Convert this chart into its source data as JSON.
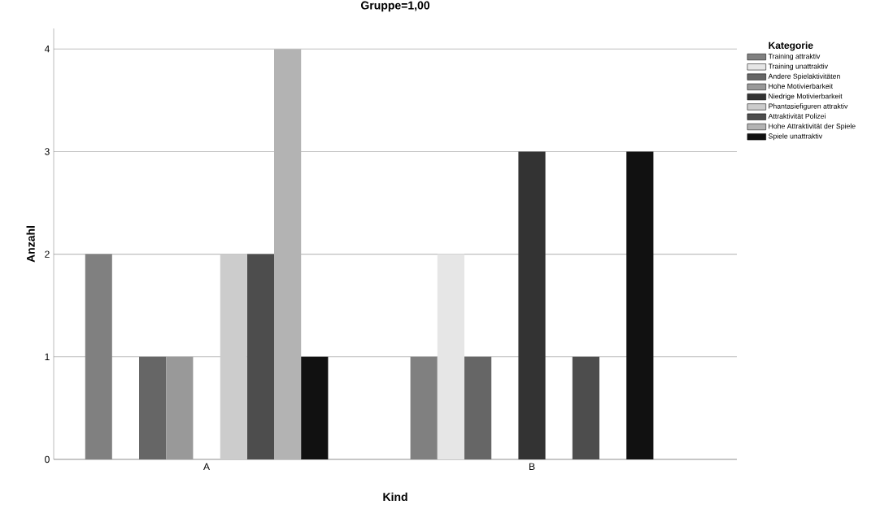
{
  "chart_data": {
    "type": "bar",
    "title": "Gruppe=1,00",
    "xlabel": "Kind",
    "ylabel": "Anzahl",
    "legend_title": "Kategorie",
    "categories": [
      "A",
      "B"
    ],
    "series": [
      {
        "name": "Training attraktiv",
        "color": "#808080",
        "values": [
          2,
          1
        ]
      },
      {
        "name": "Training unattraktiv",
        "color": "#e6e6e6",
        "values": [
          0,
          2
        ]
      },
      {
        "name": "Andere Spielaktivitäten",
        "color": "#666666",
        "values": [
          1,
          1
        ]
      },
      {
        "name": "Hohe Motivierbarkeit",
        "color": "#999999",
        "values": [
          1,
          0
        ]
      },
      {
        "name": "Niedrige Motivierbarkeit",
        "color": "#333333",
        "values": [
          0,
          3
        ]
      },
      {
        "name": "Phantasiefiguren attraktiv",
        "color": "#cccccc",
        "values": [
          2,
          0
        ]
      },
      {
        "name": "Attraktivität Polizei",
        "color": "#4d4d4d",
        "values": [
          2,
          1
        ]
      },
      {
        "name": "Hohe Attraktivität der Spiele",
        "color": "#b3b3b3",
        "values": [
          4,
          0
        ]
      },
      {
        "name": "Spiele unattraktiv",
        "color": "#111111",
        "values": [
          1,
          3
        ]
      }
    ],
    "ylim": [
      0,
      4.2
    ],
    "yticks": [
      0,
      1,
      2,
      3,
      4
    ],
    "grid": "y",
    "legend": "top right"
  }
}
